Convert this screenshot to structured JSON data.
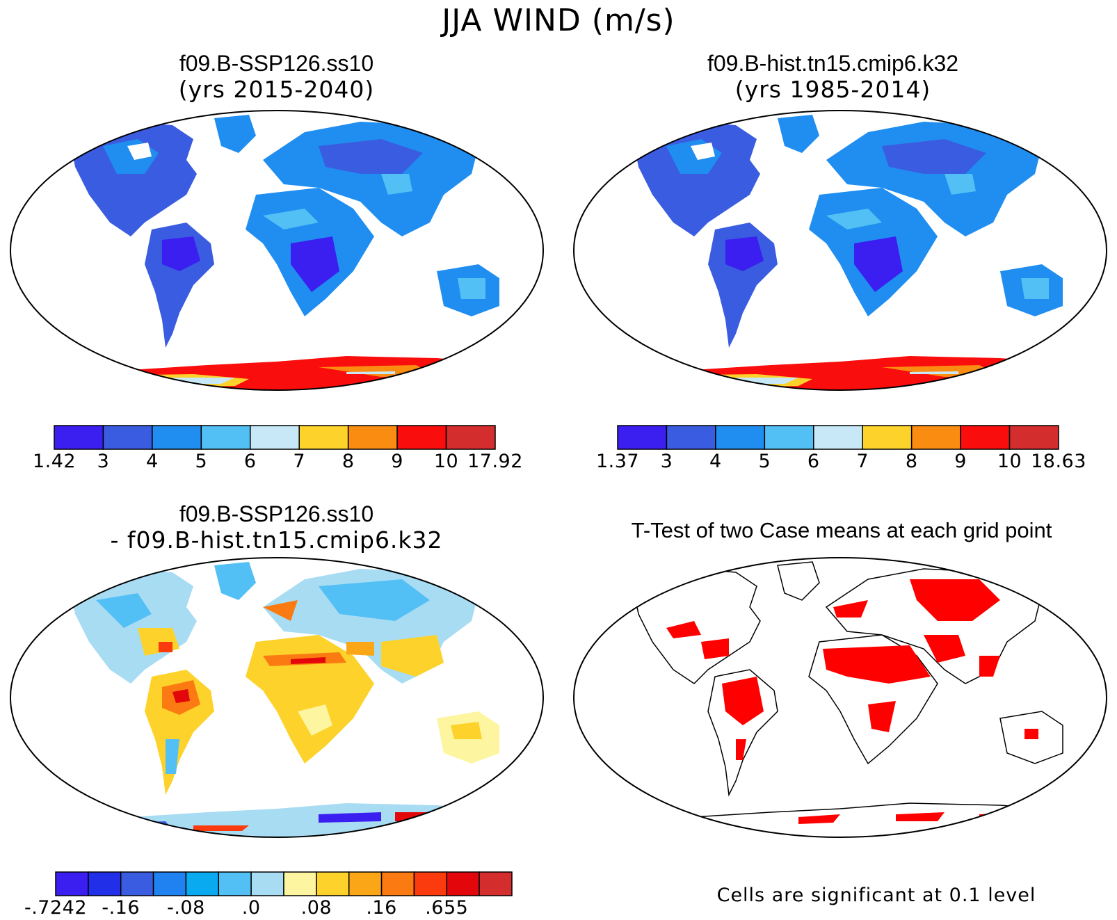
{
  "main_title": "JJA WIND (m/s)",
  "panels": [
    {
      "name": "f09.B-SSP126.ss10",
      "subtitle": "(yrs 2015-2040)"
    },
    {
      "name": "f09.B-hist.tn15.cmip6.k32",
      "subtitle": "(yrs 1985-2014)"
    },
    {
      "name": "f09.B-SSP126.ss10",
      "subtitle": "- f09.B-hist.tn15.cmip6.k32"
    },
    {
      "name": "T-Test of two Case means at each grid point",
      "subtitle": ""
    }
  ],
  "colorbars": [
    {
      "colors": [
        "#3b1ef0",
        "#3a5ce0",
        "#1f8ef0",
        "#53c0f5",
        "#c9e8f7",
        "#fdd22a",
        "#fb8c12",
        "#f90d0d",
        "#d32d2d"
      ],
      "labels": [
        "1.42",
        "3",
        "4",
        "5",
        "6",
        "7",
        "8",
        "9",
        "10",
        "17.92"
      ]
    },
    {
      "colors": [
        "#3b1ef0",
        "#3a5ce0",
        "#1f8ef0",
        "#53c0f5",
        "#c9e8f7",
        "#fdd22a",
        "#fb8c12",
        "#f90d0d",
        "#d32d2d"
      ],
      "labels": [
        "1.37",
        "3",
        "4",
        "5",
        "6",
        "7",
        "8",
        "9",
        "10",
        "18.63"
      ]
    },
    {
      "colors": [
        "#3b1ef0",
        "#2130e8",
        "#3a5ce0",
        "#1f82f0",
        "#0aaaf0",
        "#53c0f5",
        "#a8dcf3",
        "#fdf5a0",
        "#fdd22a",
        "#fba617",
        "#fb7a12",
        "#fb3a0d",
        "#e3060a",
        "#d32d2d"
      ],
      "labels": [
        "-.7242",
        "-.16",
        "-.08",
        ".0",
        ".08",
        ".16",
        ".655"
      ]
    }
  ],
  "ttest_note": "Cells are significant at 0.1 level",
  "colors": {
    "significant": "#ff0000",
    "ocean": "#ffffff",
    "outline": "#000000"
  }
}
